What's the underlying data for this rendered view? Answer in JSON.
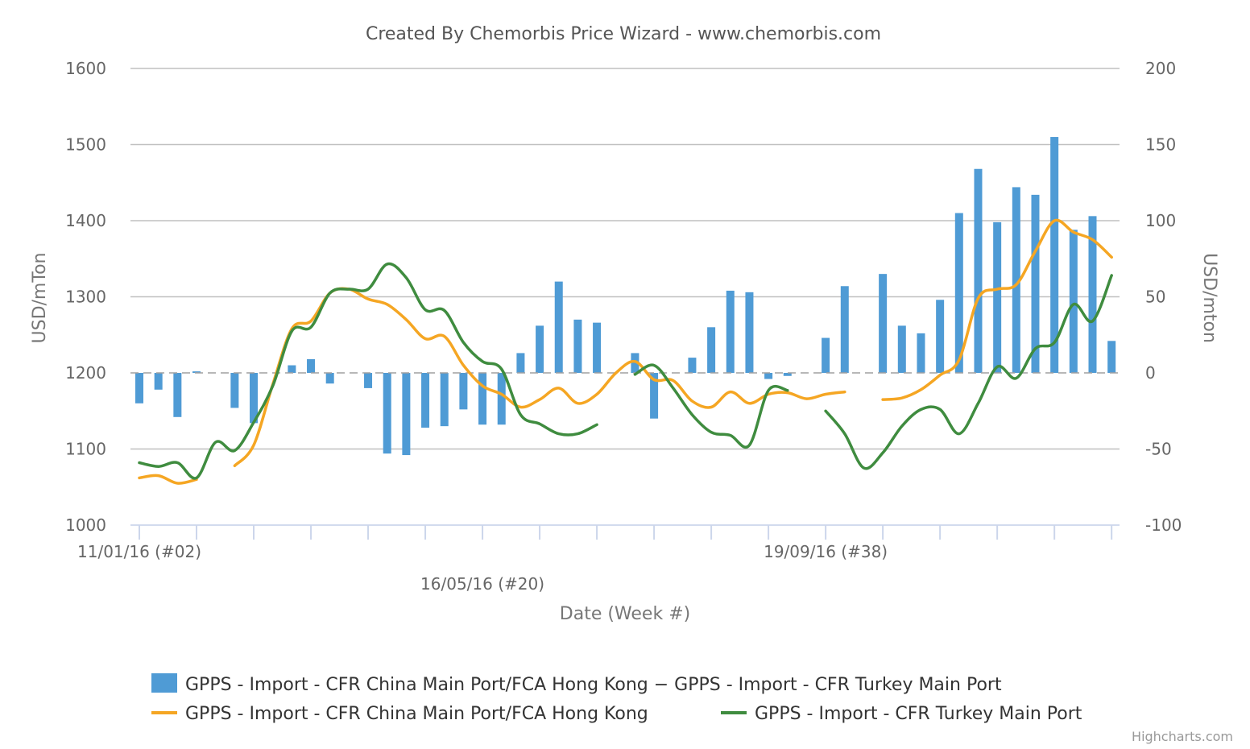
{
  "chart_data": {
    "type": "bar",
    "title": "Created By Chemorbis Price Wizard - www.chemorbis.com",
    "xlabel": "Date (Week #)",
    "ylabel_left": "USD/mTon",
    "ylabel_right": "USD/mton",
    "credit": "Highcharts.com",
    "y_left": {
      "min": 1000,
      "max": 1600,
      "ticks": [
        1000,
        1100,
        1200,
        1300,
        1400,
        1500,
        1600
      ]
    },
    "y_right": {
      "min": -100,
      "max": 200,
      "ticks": [
        -100,
        -50,
        0,
        50,
        100,
        150,
        200
      ]
    },
    "x_labels": [
      {
        "text": "11/01/16 (#02)",
        "index": 0
      },
      {
        "text": "16/05/16 (#20)",
        "index": 18
      },
      {
        "text": "19/09/16 (#38)",
        "index": 36
      }
    ],
    "week_count": 52,
    "colors": {
      "bar": "#4f9bd5",
      "china": "#f5a623",
      "turkey": "#3f8c3f",
      "grid": "#c0c0c0",
      "zero": "#a0a0a0"
    },
    "series": [
      {
        "name": "GPPS - Import - CFR China Main Port/FCA Hong Kong − GPPS - Import - CFR Turkey Main Port",
        "type": "bar",
        "axis": "right",
        "values": [
          -20,
          -11,
          -29,
          1,
          null,
          -23,
          -33,
          null,
          5,
          9,
          -7,
          null,
          -10,
          -53,
          -54,
          -36,
          -35,
          -24,
          -34,
          -34,
          13,
          31,
          60,
          35,
          33,
          null,
          13,
          -30,
          null,
          10,
          30,
          54,
          53,
          -4,
          -2,
          null,
          23,
          57,
          null,
          65,
          31,
          26,
          48,
          105,
          134,
          99,
          122,
          117,
          155,
          94,
          103,
          21
        ]
      },
      {
        "name": "GPPS - Import - CFR China Main Port/FCA Hong Kong",
        "type": "line",
        "axis": "left",
        "values": [
          1062,
          1065,
          1055,
          1060,
          null,
          1078,
          1105,
          1185,
          1258,
          1268,
          1305,
          1310,
          1297,
          1290,
          1270,
          1245,
          1248,
          1210,
          1183,
          1172,
          1155,
          1165,
          1180,
          1160,
          1172,
          1200,
          1215,
          1191,
          1190,
          1163,
          1155,
          1175,
          1160,
          1172,
          1174,
          1166,
          1172,
          1175,
          null,
          1165,
          1167,
          1178,
          1197,
          1217,
          1298,
          1310,
          1316,
          1360,
          1400,
          1385,
          1375,
          1352
        ]
      },
      {
        "name": "GPPS - Import - CFR Turkey Main Port",
        "type": "line",
        "axis": "left",
        "values": [
          1082,
          1077,
          1082,
          1062,
          1109,
          1098,
          1135,
          1183,
          1255,
          1260,
          1305,
          1310,
          1310,
          1343,
          1325,
          1283,
          1282,
          1240,
          1215,
          1205,
          1145,
          1133,
          1120,
          1120,
          1132,
          null,
          1198,
          1210,
          1180,
          1145,
          1122,
          1118,
          1105,
          1177,
          1177,
          null,
          1150,
          1120,
          1075,
          1095,
          1130,
          1152,
          1152,
          1120,
          1160,
          1208,
          1193,
          1232,
          1240,
          1290,
          1268,
          1328
        ]
      }
    ]
  }
}
